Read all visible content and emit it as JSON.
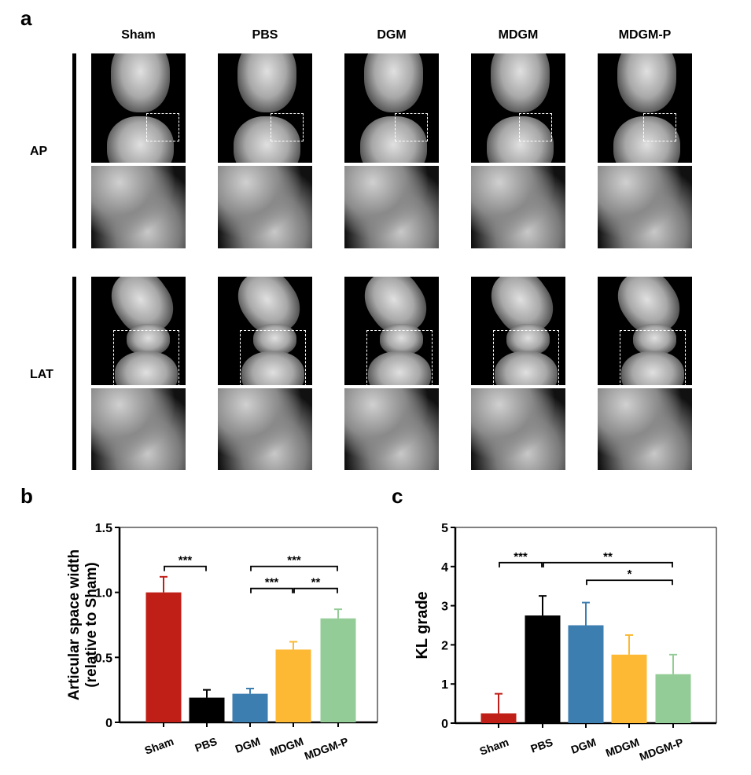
{
  "panels": {
    "a": "a",
    "b": "b",
    "c": "c"
  },
  "groups": [
    "Sham",
    "PBS",
    "DGM",
    "MDGM",
    "MDGM-P"
  ],
  "views": [
    "AP",
    "LAT"
  ],
  "colors": {
    "Sham": "#c01f17",
    "PBS": "#000000",
    "DGM": "#3d7eb0",
    "MDGM": "#fdb933",
    "MDGM-P": "#93cc96"
  },
  "chart_data": [
    {
      "type": "bar",
      "panel": "b",
      "title": "",
      "xlabel": "",
      "ylabel": "Articular space width",
      "ylabel2": "(relative to Sham)",
      "categories": [
        "Sham",
        "PBS",
        "DGM",
        "MDGM",
        "MDGM-P"
      ],
      "values": [
        1.0,
        0.19,
        0.22,
        0.56,
        0.8
      ],
      "errors": [
        0.12,
        0.06,
        0.04,
        0.06,
        0.07
      ],
      "ylim": [
        0,
        1.5
      ],
      "yticks": [
        0,
        0.5,
        1.0,
        1.5
      ],
      "ytick_labels": [
        "0",
        "0.5",
        "1.0",
        "1.5"
      ],
      "significance": [
        {
          "from": 0,
          "to": 1,
          "y": 1.2,
          "label": "***"
        },
        {
          "from": 2,
          "to": 4,
          "y": 1.2,
          "label": "***"
        },
        {
          "from": 2,
          "to": 3,
          "y": 1.03,
          "label": "***"
        },
        {
          "from": 3,
          "to": 4,
          "y": 1.03,
          "label": "**"
        }
      ]
    },
    {
      "type": "bar",
      "panel": "c",
      "title": "",
      "xlabel": "",
      "ylabel": "KL grade",
      "categories": [
        "Sham",
        "PBS",
        "DGM",
        "MDGM",
        "MDGM-P"
      ],
      "values": [
        0.25,
        2.75,
        2.5,
        1.75,
        1.25
      ],
      "errors": [
        0.5,
        0.5,
        0.58,
        0.5,
        0.5
      ],
      "ylim": [
        0,
        5
      ],
      "yticks": [
        0,
        1,
        2,
        3,
        4,
        5
      ],
      "ytick_labels": [
        "0",
        "1",
        "2",
        "3",
        "4",
        "5"
      ],
      "significance": [
        {
          "from": 0,
          "to": 1,
          "y": 4.1,
          "label": "***"
        },
        {
          "from": 1,
          "to": 4,
          "y": 4.1,
          "label": "**"
        },
        {
          "from": 2,
          "to": 4,
          "y": 3.65,
          "label": "*"
        }
      ]
    }
  ]
}
